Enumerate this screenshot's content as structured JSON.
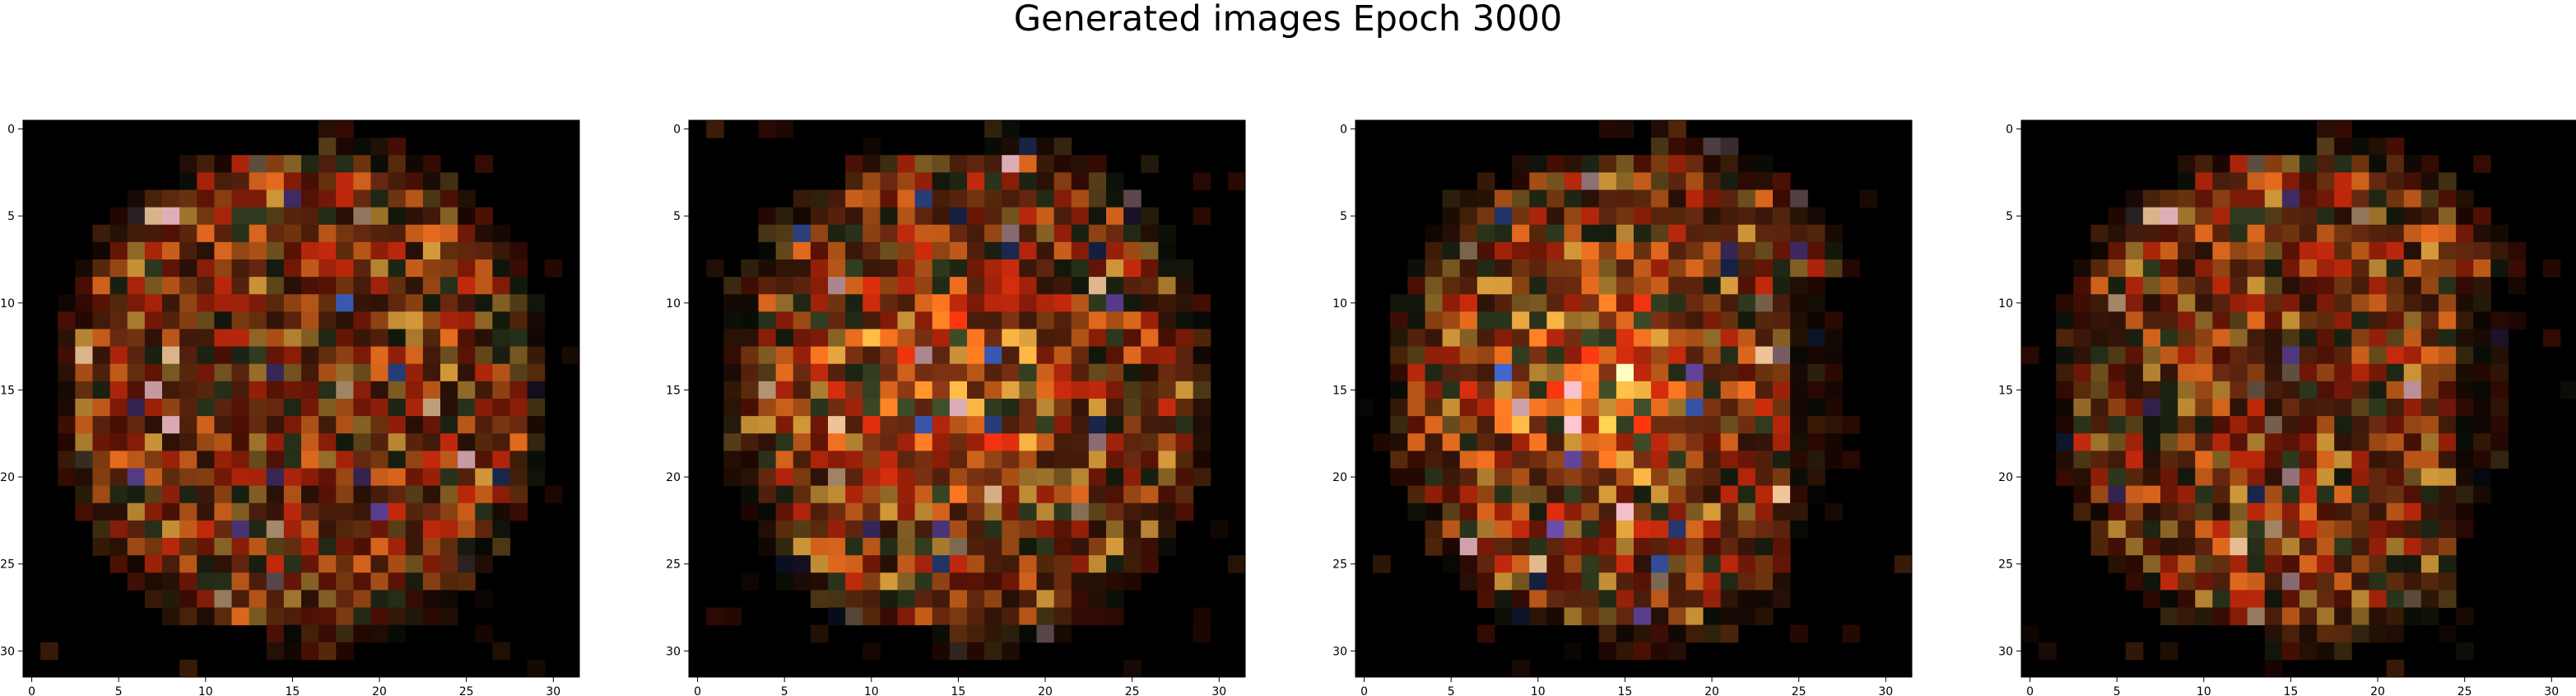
{
  "figure": {
    "title": "Generated images Epoch 3000"
  },
  "panels_count": 4,
  "axis": {
    "x_ticks": [
      "0",
      "5",
      "10",
      "15",
      "20",
      "25",
      "30"
    ],
    "y_ticks": [
      "0",
      "5",
      "10",
      "15",
      "20",
      "25",
      "30"
    ]
  },
  "image": {
    "grid_size": 32,
    "palette": {
      "background": "#000000",
      "red": "#c62a0c",
      "orange": "#e36a1e",
      "gold": "#d49a3a",
      "brown": "#6b2a10",
      "dark_green": "#2f3a1e",
      "peach": "#f2c79a",
      "pink": "#e8b6c0",
      "blue": "#3a58b0",
      "purple": "#6a4aa8"
    }
  }
}
